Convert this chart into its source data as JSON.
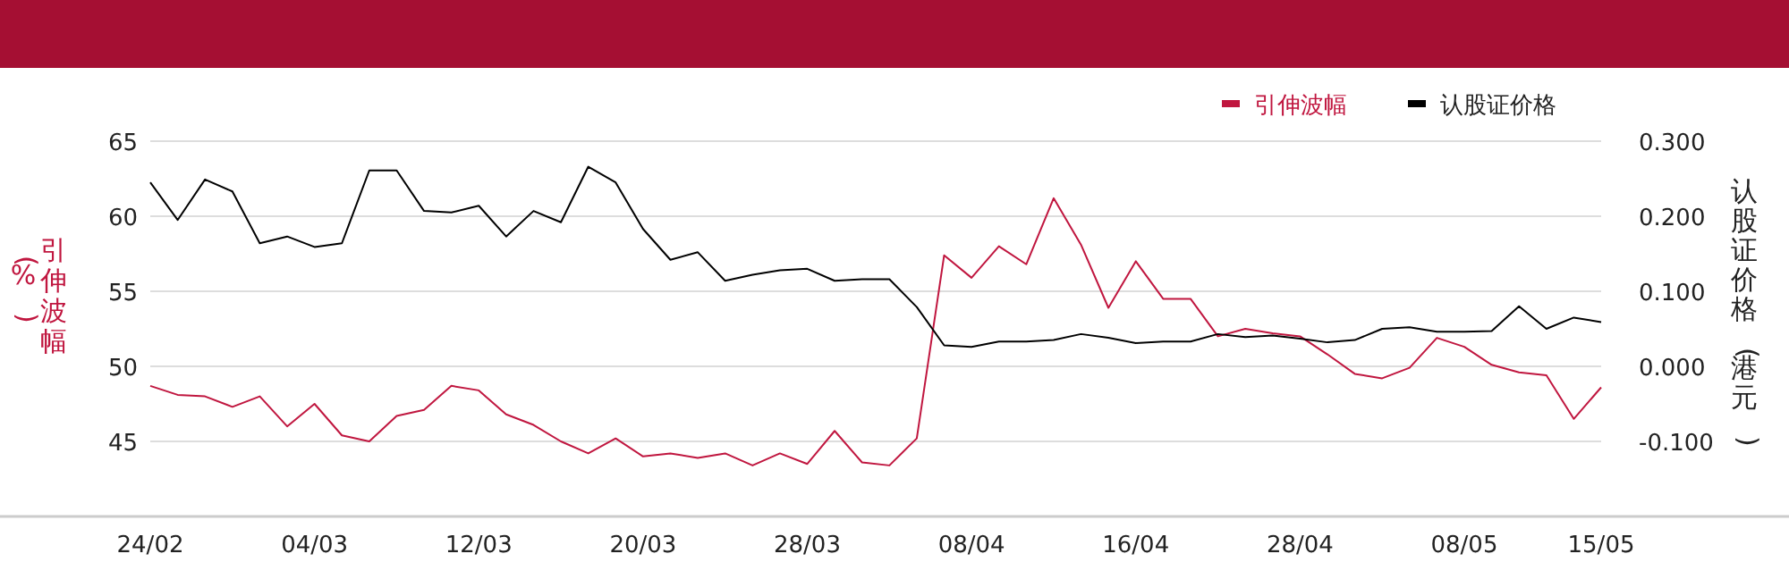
{
  "chart_data": {
    "type": "line",
    "categories": [
      "24/02",
      null,
      null,
      null,
      null,
      null,
      "04/03",
      null,
      null,
      null,
      null,
      null,
      "12/03",
      null,
      null,
      null,
      null,
      null,
      "20/03",
      null,
      null,
      null,
      null,
      null,
      "28/03",
      null,
      null,
      null,
      null,
      null,
      "08/04",
      null,
      null,
      null,
      null,
      null,
      "16/04",
      null,
      null,
      null,
      null,
      null,
      "28/04",
      null,
      null,
      null,
      null,
      null,
      "08/05",
      null,
      null,
      null,
      null,
      "15/05"
    ],
    "series": [
      {
        "name": "引伸波幅",
        "color": "#c0163f",
        "axis": "y",
        "values": [
          48.7,
          48.1,
          48.0,
          47.3,
          48.0,
          46.0,
          47.5,
          45.4,
          45.0,
          46.7,
          47.1,
          48.7,
          48.4,
          46.8,
          46.1,
          45.0,
          44.2,
          45.2,
          44.0,
          44.2,
          43.9,
          44.2,
          43.4,
          44.2,
          43.5,
          45.7,
          43.6,
          43.4,
          45.2,
          57.4,
          55.9,
          58.0,
          56.8,
          61.2,
          58.1,
          53.9,
          57.0,
          54.5,
          54.5,
          52.0,
          52.5,
          52.2,
          52.0,
          50.8,
          49.5,
          49.2,
          49.9,
          51.9,
          51.3,
          50.1,
          49.6,
          49.4,
          46.5,
          48.6
        ]
      },
      {
        "name": "认股证价格",
        "color": "#000000",
        "axis": "y2",
        "values": [
          0.245,
          0.195,
          0.249,
          0.233,
          0.164,
          0.173,
          0.159,
          0.164,
          0.261,
          0.261,
          0.207,
          0.205,
          0.214,
          0.173,
          0.207,
          0.192,
          0.266,
          0.245,
          0.183,
          0.142,
          0.152,
          0.114,
          0.122,
          0.128,
          0.13,
          0.114,
          0.116,
          0.116,
          0.079,
          0.028,
          0.026,
          0.033,
          0.033,
          0.035,
          0.043,
          0.038,
          0.031,
          0.033,
          0.033,
          0.043,
          0.039,
          0.041,
          0.037,
          0.032,
          0.035,
          0.05,
          0.052,
          0.046,
          0.046,
          0.047,
          0.08,
          0.05,
          0.065,
          0.059
        ]
      }
    ],
    "ylabel": "引伸波幅(%)",
    "y2label": "认股证价格(港元)",
    "ylim": [
      40,
      65
    ],
    "yticks": [
      45,
      50,
      55,
      60,
      65
    ],
    "y2lim": [
      -0.2,
      0.3
    ],
    "y2ticks": [
      {
        "value": -0.1,
        "label": "-0.100"
      },
      {
        "value": 0,
        "label": "0.000"
      },
      {
        "value": 0.1,
        "label": "0.100"
      },
      {
        "value": 0.2,
        "label": "0.200"
      },
      {
        "value": 0.3,
        "label": "0.300"
      }
    ],
    "grid": "y",
    "legend": "top right"
  }
}
